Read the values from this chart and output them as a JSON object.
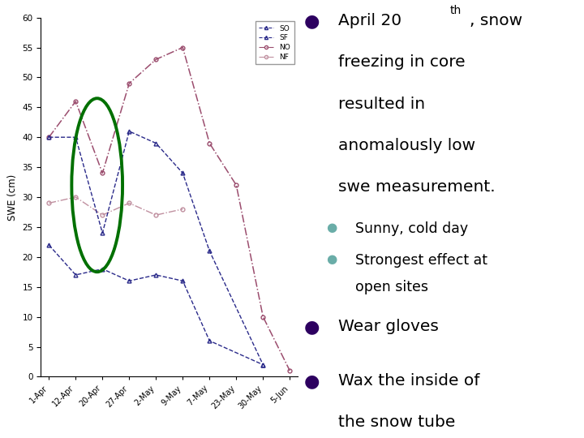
{
  "x_labels": [
    "1-Apr",
    "12-Apr",
    "20-Apr",
    "27-Apr",
    "2-May",
    "9-May",
    " 7-May",
    "23-May",
    "30-May",
    "5-Jun"
  ],
  "ylim": [
    0,
    60
  ],
  "yticks": [
    0,
    5,
    10,
    15,
    20,
    25,
    30,
    35,
    40,
    45,
    50,
    55,
    60
  ],
  "ylabel": "SWE (cm)",
  "so_x": [
    0,
    1,
    2,
    3,
    4,
    5,
    6,
    8
  ],
  "so_y": [
    40,
    40,
    24,
    41,
    39,
    34,
    21,
    2
  ],
  "sf_x": [
    0,
    1,
    2,
    3,
    4,
    5,
    6,
    8
  ],
  "sf_y": [
    22,
    17,
    18,
    16,
    17,
    16,
    6,
    2
  ],
  "no_x": [
    0,
    1,
    2,
    3,
    4,
    5,
    6,
    7,
    8,
    9
  ],
  "no_y": [
    40,
    46,
    34,
    49,
    53,
    55,
    39,
    32,
    10,
    1
  ],
  "nf_x": [
    0,
    1,
    2,
    3,
    4,
    5
  ],
  "nf_y": [
    29,
    30,
    27,
    29,
    27,
    28
  ],
  "dark_color": "#2a2a8a",
  "pink_color": "#9b4d6e",
  "light_pink": "#c090a0",
  "circle_color": "#007000",
  "bullet_color": "#2d0060",
  "sub_bullet_color": "#6aada8",
  "bg_color": "#ffffff"
}
